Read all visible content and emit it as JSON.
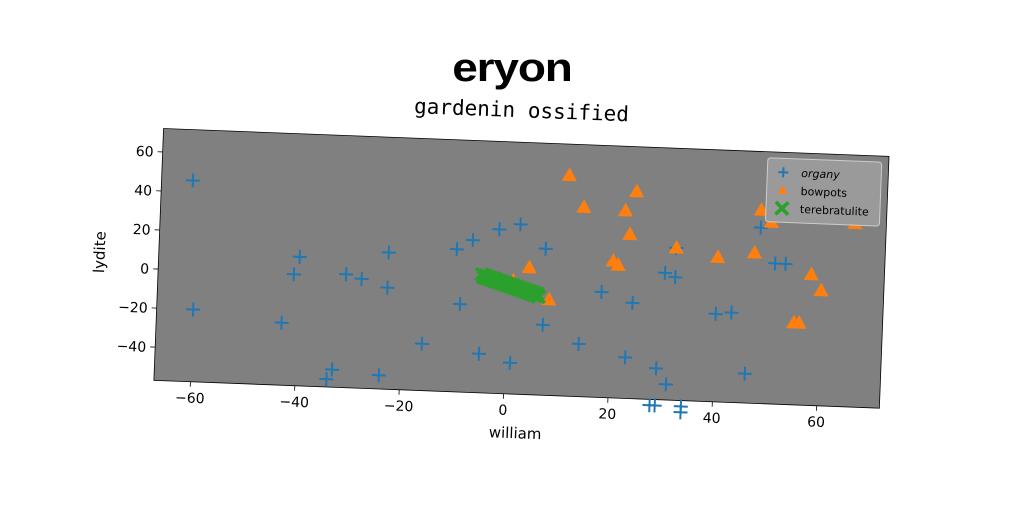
{
  "figure": {
    "suptitle": "eryon"
  },
  "chart_data": {
    "type": "scatter",
    "title": "gardenin ossified",
    "xlabel": "william",
    "ylabel": "lydite",
    "xlim": [
      -67,
      72
    ],
    "ylim": [
      -57,
      72
    ],
    "xticks": [
      -60,
      -40,
      -20,
      0,
      20,
      40,
      60
    ],
    "yticks": [
      -40,
      -20,
      0,
      20,
      40,
      60
    ],
    "background_color": "#808080",
    "grid": false,
    "legend_position": "top-right",
    "series": [
      {
        "name": "organy",
        "marker": "plus",
        "color": "#1f77b4",
        "points": [
          [
            -61,
            46
          ],
          [
            -60,
            -20
          ],
          [
            -43,
            -25
          ],
          [
            -40,
            9
          ],
          [
            -41,
            0
          ],
          [
            -33,
            -48
          ],
          [
            -34,
            -53
          ],
          [
            -31,
            1
          ],
          [
            -28,
            -1
          ],
          [
            -23,
            13
          ],
          [
            -23,
            -5
          ],
          [
            -24,
            -50
          ],
          [
            -16,
            -33
          ],
          [
            -10,
            16
          ],
          [
            -7,
            21
          ],
          [
            -9,
            -12
          ],
          [
            -5,
            -37
          ],
          [
            -2,
            27
          ],
          [
            2,
            30
          ],
          [
            1,
            -41
          ],
          [
            7,
            18
          ],
          [
            7,
            -21
          ],
          [
            14,
            -30
          ],
          [
            18,
            -3
          ],
          [
            23,
            -36
          ],
          [
            24,
            -8
          ],
          [
            29,
            -41
          ],
          [
            30,
            8
          ],
          [
            32,
            21
          ],
          [
            32,
            6
          ],
          [
            31,
            -49
          ],
          [
            28,
            -60
          ],
          [
            29,
            -60
          ],
          [
            34,
            -60
          ],
          [
            34,
            -63
          ],
          [
            40,
            -12
          ],
          [
            43,
            -11
          ],
          [
            46,
            -42
          ],
          [
            48,
            33
          ],
          [
            51,
            15
          ],
          [
            53,
            15
          ]
        ]
      },
      {
        "name": "bowpots",
        "marker": "triangle",
        "color": "#ff7f0e",
        "points": [
          [
            11,
            56
          ],
          [
            14,
            40
          ],
          [
            22,
            39
          ],
          [
            24,
            49
          ],
          [
            20,
            13
          ],
          [
            21,
            11
          ],
          [
            23,
            27
          ],
          [
            32,
            21
          ],
          [
            40,
            17
          ],
          [
            47,
            20
          ],
          [
            48,
            42
          ],
          [
            50,
            36
          ],
          [
            66,
            37
          ],
          [
            58,
            10
          ],
          [
            60,
            2
          ],
          [
            55,
            -15
          ],
          [
            56,
            -15
          ],
          [
            4,
            8
          ],
          [
            8,
            -8
          ],
          [
            1,
            1
          ]
        ]
      },
      {
        "name": "terebratulite",
        "marker": "x",
        "color": "#2ca02c",
        "line_from": [
          -5,
          3
        ],
        "line_to": [
          6,
          -6
        ],
        "count": 34
      }
    ]
  }
}
